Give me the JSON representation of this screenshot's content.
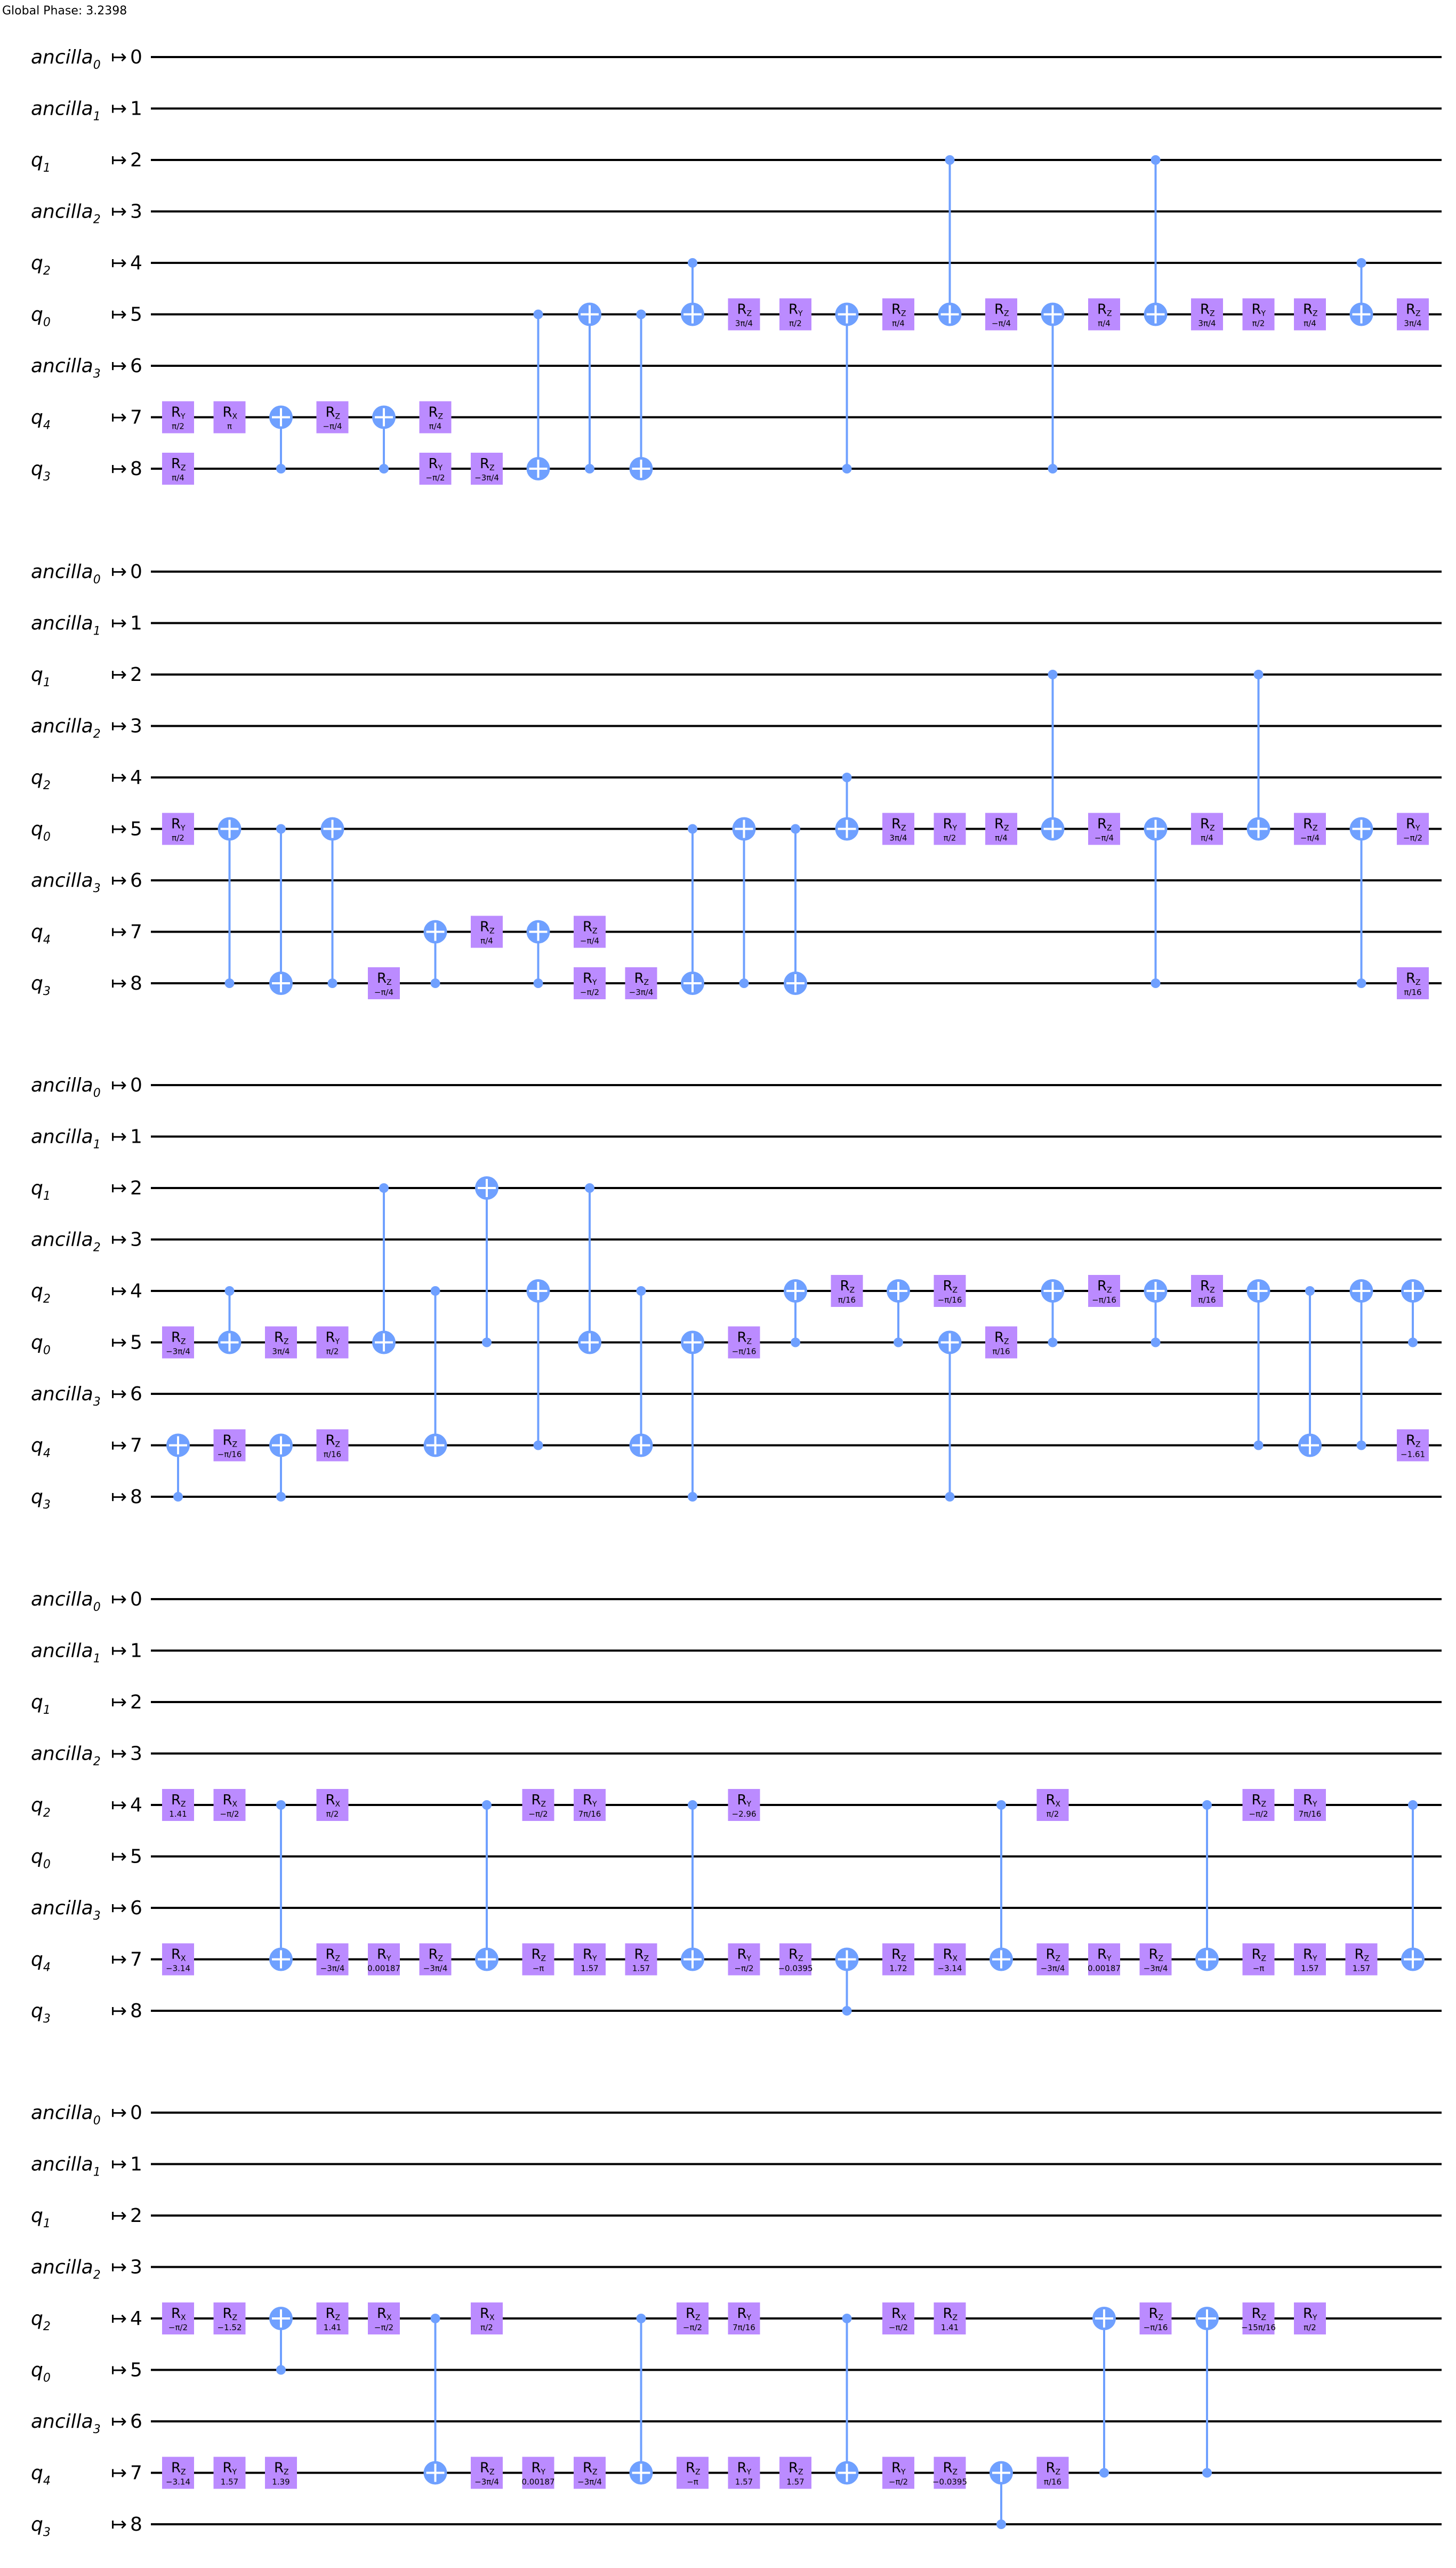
{
  "global_phase": "Global Phase: 3.2398",
  "arrow": "↦",
  "qubits": [
    {
      "name": "ancilla",
      "sub": "0",
      "index": "0"
    },
    {
      "name": "ancilla",
      "sub": "1",
      "index": "1"
    },
    {
      "name": "q",
      "sub": "1",
      "index": "2"
    },
    {
      "name": "ancilla",
      "sub": "2",
      "index": "3"
    },
    {
      "name": "q",
      "sub": "2",
      "index": "4"
    },
    {
      "name": "q",
      "sub": "0",
      "index": "5"
    },
    {
      "name": "ancilla",
      "sub": "3",
      "index": "6"
    },
    {
      "name": "q",
      "sub": "4",
      "index": "7"
    },
    {
      "name": "q",
      "sub": "3",
      "index": "8"
    }
  ],
  "colors": {
    "gate": "#bb8bff",
    "control": "#6fa0ff",
    "wire": "#000000"
  },
  "panels": [
    {
      "ops": [
        {
          "t": "g",
          "w": 7,
          "c": 1,
          "n": "R",
          "s": "Y",
          "p": "π/2"
        },
        {
          "t": "g",
          "w": 8,
          "c": 1,
          "n": "R",
          "s": "Z",
          "p": "π/4"
        },
        {
          "t": "g",
          "w": 7,
          "c": 2,
          "n": "R",
          "s": "X",
          "p": "π"
        },
        {
          "t": "cx",
          "c": 3,
          "ctrl": 8,
          "tgt": 7
        },
        {
          "t": "g",
          "w": 7,
          "c": 4,
          "n": "R",
          "s": "Z",
          "p": "−π/4"
        },
        {
          "t": "cx",
          "c": 5,
          "ctrl": 8,
          "tgt": 7
        },
        {
          "t": "g",
          "w": 7,
          "c": 6,
          "n": "R",
          "s": "Z",
          "p": "π/4"
        },
        {
          "t": "g",
          "w": 8,
          "c": 6,
          "n": "R",
          "s": "Y",
          "p": "−π/2"
        },
        {
          "t": "g",
          "w": 8,
          "c": 7,
          "n": "R",
          "s": "Z",
          "p": "−3π/4"
        },
        {
          "t": "cx",
          "c": 8,
          "ctrl": 5,
          "tgt": 8
        },
        {
          "t": "cx",
          "c": 9,
          "ctrl": 8,
          "tgt": 5
        },
        {
          "t": "cx",
          "c": 10,
          "ctrl": 5,
          "tgt": 8
        },
        {
          "t": "cx",
          "c": 11,
          "ctrl": 4,
          "tgt": 5
        },
        {
          "t": "g",
          "w": 5,
          "c": 12,
          "n": "R",
          "s": "Z",
          "p": "3π/4"
        },
        {
          "t": "g",
          "w": 5,
          "c": 13,
          "n": "R",
          "s": "Y",
          "p": "π/2"
        },
        {
          "t": "cx",
          "c": 14,
          "ctrl": 8,
          "tgt": 5
        },
        {
          "t": "g",
          "w": 5,
          "c": 15,
          "n": "R",
          "s": "Z",
          "p": "π/4"
        },
        {
          "t": "cx",
          "c": 16,
          "ctrl": 2,
          "tgt": 5
        },
        {
          "t": "g",
          "w": 5,
          "c": 17,
          "n": "R",
          "s": "Z",
          "p": "−π/4"
        },
        {
          "t": "cx",
          "c": 18,
          "ctrl": 8,
          "tgt": 5
        },
        {
          "t": "g",
          "w": 5,
          "c": 19,
          "n": "R",
          "s": "Z",
          "p": "π/4"
        },
        {
          "t": "cx",
          "c": 20,
          "ctrl": 2,
          "tgt": 5
        },
        {
          "t": "g",
          "w": 5,
          "c": 21,
          "n": "R",
          "s": "Z",
          "p": "3π/4"
        },
        {
          "t": "g",
          "w": 5,
          "c": 22,
          "n": "R",
          "s": "Y",
          "p": "π/2"
        },
        {
          "t": "g",
          "w": 5,
          "c": 23,
          "n": "R",
          "s": "Z",
          "p": "π/4"
        },
        {
          "t": "cx",
          "c": 24,
          "ctrl": 4,
          "tgt": 5
        },
        {
          "t": "g",
          "w": 5,
          "c": 25,
          "n": "R",
          "s": "Z",
          "p": "3π/4"
        }
      ]
    },
    {
      "ops": [
        {
          "t": "g",
          "w": 5,
          "c": 1,
          "n": "R",
          "s": "Y",
          "p": "π/2"
        },
        {
          "t": "cx",
          "c": 2,
          "ctrl": 8,
          "tgt": 5
        },
        {
          "t": "cx",
          "c": 3,
          "ctrl": 5,
          "tgt": 8
        },
        {
          "t": "cx",
          "c": 4,
          "ctrl": 8,
          "tgt": 5
        },
        {
          "t": "g",
          "w": 8,
          "c": 5,
          "n": "R",
          "s": "Z",
          "p": "−π/4"
        },
        {
          "t": "cx",
          "c": 6,
          "ctrl": 8,
          "tgt": 7
        },
        {
          "t": "g",
          "w": 7,
          "c": 7,
          "n": "R",
          "s": "Z",
          "p": "π/4"
        },
        {
          "t": "cx",
          "c": 8,
          "ctrl": 8,
          "tgt": 7
        },
        {
          "t": "g",
          "w": 7,
          "c": 9,
          "n": "R",
          "s": "Z",
          "p": "−π/4"
        },
        {
          "t": "g",
          "w": 8,
          "c": 9,
          "n": "R",
          "s": "Y",
          "p": "−π/2"
        },
        {
          "t": "g",
          "w": 8,
          "c": 10,
          "n": "R",
          "s": "Z",
          "p": "−3π/4"
        },
        {
          "t": "cx",
          "c": 11,
          "ctrl": 5,
          "tgt": 8
        },
        {
          "t": "cx",
          "c": 12,
          "ctrl": 8,
          "tgt": 5
        },
        {
          "t": "cx",
          "c": 13,
          "ctrl": 5,
          "tgt": 8
        },
        {
          "t": "cx",
          "c": 14,
          "ctrl": 4,
          "tgt": 5
        },
        {
          "t": "g",
          "w": 5,
          "c": 15,
          "n": "R",
          "s": "Z",
          "p": "3π/4"
        },
        {
          "t": "g",
          "w": 5,
          "c": 16,
          "n": "R",
          "s": "Y",
          "p": "π/2"
        },
        {
          "t": "g",
          "w": 5,
          "c": 17,
          "n": "R",
          "s": "Z",
          "p": "π/4"
        },
        {
          "t": "cx",
          "c": 18,
          "ctrl": 2,
          "tgt": 5
        },
        {
          "t": "g",
          "w": 5,
          "c": 19,
          "n": "R",
          "s": "Z",
          "p": "−π/4"
        },
        {
          "t": "cx",
          "c": 20,
          "ctrl": 8,
          "tgt": 5
        },
        {
          "t": "g",
          "w": 5,
          "c": 21,
          "n": "R",
          "s": "Z",
          "p": "π/4"
        },
        {
          "t": "cx",
          "c": 22,
          "ctrl": 2,
          "tgt": 5
        },
        {
          "t": "g",
          "w": 5,
          "c": 23,
          "n": "R",
          "s": "Z",
          "p": "−π/4"
        },
        {
          "t": "cx",
          "c": 24,
          "ctrl": 8,
          "tgt": 5
        },
        {
          "t": "g",
          "w": 5,
          "c": 25,
          "n": "R",
          "s": "Y",
          "p": "−π/2"
        },
        {
          "t": "g",
          "w": 8,
          "c": 25,
          "n": "R",
          "s": "Z",
          "p": "π/16"
        }
      ]
    },
    {
      "ops": [
        {
          "t": "g",
          "w": 5,
          "c": 1,
          "n": "R",
          "s": "Z",
          "p": "−3π/4"
        },
        {
          "t": "cx",
          "c": 1,
          "ctrl": 8,
          "tgt": 7
        },
        {
          "t": "cx",
          "c": 2,
          "ctrl": 4,
          "tgt": 5
        },
        {
          "t": "g",
          "w": 7,
          "c": 2,
          "n": "R",
          "s": "Z",
          "p": "−π/16"
        },
        {
          "t": "g",
          "w": 5,
          "c": 3,
          "n": "R",
          "s": "Z",
          "p": "3π/4"
        },
        {
          "t": "cx",
          "c": 3,
          "ctrl": 8,
          "tgt": 7
        },
        {
          "t": "g",
          "w": 5,
          "c": 4,
          "n": "R",
          "s": "Y",
          "p": "π/2"
        },
        {
          "t": "g",
          "w": 7,
          "c": 4,
          "n": "R",
          "s": "Z",
          "p": "π/16"
        },
        {
          "t": "cx",
          "c": 5,
          "ctrl": 2,
          "tgt": 5
        },
        {
          "t": "cx",
          "c": 6,
          "ctrl": 4,
          "tgt": 7
        },
        {
          "t": "cx",
          "c": 7,
          "ctrl": 5,
          "tgt": 2
        },
        {
          "t": "cx",
          "c": 8,
          "ctrl": 7,
          "tgt": 4
        },
        {
          "t": "cx",
          "c": 9,
          "ctrl": 2,
          "tgt": 5
        },
        {
          "t": "cx",
          "c": 10,
          "ctrl": 4,
          "tgt": 7
        },
        {
          "t": "cx",
          "c": 11,
          "ctrl": 8,
          "tgt": 5
        },
        {
          "t": "g",
          "w": 5,
          "c": 12,
          "n": "R",
          "s": "Z",
          "p": "−π/16"
        },
        {
          "t": "cx",
          "c": 13,
          "ctrl": 5,
          "tgt": 4
        },
        {
          "t": "g",
          "w": 4,
          "c": 14,
          "n": "R",
          "s": "Z",
          "p": "π/16"
        },
        {
          "t": "cx",
          "c": 15,
          "ctrl": 5,
          "tgt": 4
        },
        {
          "t": "g",
          "w": 4,
          "c": 16,
          "n": "R",
          "s": "Z",
          "p": "−π/16"
        },
        {
          "t": "cx",
          "c": 16,
          "ctrl": 8,
          "tgt": 5
        },
        {
          "t": "g",
          "w": 5,
          "c": 17,
          "n": "R",
          "s": "Z",
          "p": "π/16"
        },
        {
          "t": "cx",
          "c": 18,
          "ctrl": 5,
          "tgt": 4
        },
        {
          "t": "g",
          "w": 4,
          "c": 19,
          "n": "R",
          "s": "Z",
          "p": "−π/16"
        },
        {
          "t": "cx",
          "c": 20,
          "ctrl": 5,
          "tgt": 4
        },
        {
          "t": "g",
          "w": 4,
          "c": 21,
          "n": "R",
          "s": "Z",
          "p": "π/16"
        },
        {
          "t": "cx",
          "c": 22,
          "ctrl": 7,
          "tgt": 4
        },
        {
          "t": "cx",
          "c": 23,
          "ctrl": 4,
          "tgt": 7
        },
        {
          "t": "cx",
          "c": 24,
          "ctrl": 7,
          "tgt": 4
        },
        {
          "t": "cx",
          "c": 25,
          "ctrl": 5,
          "tgt": 4
        },
        {
          "t": "g",
          "w": 7,
          "c": 25,
          "n": "R",
          "s": "Z",
          "p": "−1.61"
        }
      ]
    },
    {
      "ops": [
        {
          "t": "g",
          "w": 4,
          "c": 1,
          "n": "R",
          "s": "Z",
          "p": "1.41"
        },
        {
          "t": "g",
          "w": 7,
          "c": 1,
          "n": "R",
          "s": "X",
          "p": "−3.14"
        },
        {
          "t": "g",
          "w": 4,
          "c": 2,
          "n": "R",
          "s": "X",
          "p": "−π/2"
        },
        {
          "t": "cx",
          "c": 3,
          "ctrl": 4,
          "tgt": 7
        },
        {
          "t": "g",
          "w": 4,
          "c": 4,
          "n": "R",
          "s": "X",
          "p": "π/2"
        },
        {
          "t": "g",
          "w": 7,
          "c": 4,
          "n": "R",
          "s": "Z",
          "p": "−3π/4"
        },
        {
          "t": "g",
          "w": 7,
          "c": 5,
          "n": "R",
          "s": "Y",
          "p": "0.00187"
        },
        {
          "t": "g",
          "w": 7,
          "c": 6,
          "n": "R",
          "s": "Z",
          "p": "−3π/4"
        },
        {
          "t": "cx",
          "c": 7,
          "ctrl": 4,
          "tgt": 7
        },
        {
          "t": "g",
          "w": 4,
          "c": 8,
          "n": "R",
          "s": "Z",
          "p": "−π/2"
        },
        {
          "t": "g",
          "w": 7,
          "c": 8,
          "n": "R",
          "s": "Z",
          "p": "−π"
        },
        {
          "t": "g",
          "w": 4,
          "c": 9,
          "n": "R",
          "s": "Y",
          "p": "7π/16"
        },
        {
          "t": "g",
          "w": 7,
          "c": 9,
          "n": "R",
          "s": "Y",
          "p": "1.57"
        },
        {
          "t": "g",
          "w": 7,
          "c": 10,
          "n": "R",
          "s": "Z",
          "p": "1.57"
        },
        {
          "t": "cx",
          "c": 11,
          "ctrl": 4,
          "tgt": 7
        },
        {
          "t": "g",
          "w": 4,
          "c": 12,
          "n": "R",
          "s": "Y",
          "p": "−2.96"
        },
        {
          "t": "g",
          "w": 7,
          "c": 12,
          "n": "R",
          "s": "Y",
          "p": "−π/2"
        },
        {
          "t": "g",
          "w": 7,
          "c": 13,
          "n": "R",
          "s": "Z",
          "p": "−0.0395"
        },
        {
          "t": "cx",
          "c": 14,
          "ctrl": 8,
          "tgt": 7
        },
        {
          "t": "g",
          "w": 7,
          "c": 15,
          "n": "R",
          "s": "Z",
          "p": "1.72"
        },
        {
          "t": "g",
          "w": 7,
          "c": 16,
          "n": "R",
          "s": "X",
          "p": "−3.14"
        },
        {
          "t": "cx",
          "c": 17,
          "ctrl": 4,
          "tgt": 7
        },
        {
          "t": "g",
          "w": 4,
          "c": 18,
          "n": "R",
          "s": "X",
          "p": "π/2"
        },
        {
          "t": "g",
          "w": 7,
          "c": 18,
          "n": "R",
          "s": "Z",
          "p": "−3π/4"
        },
        {
          "t": "g",
          "w": 7,
          "c": 19,
          "n": "R",
          "s": "Y",
          "p": "0.00187"
        },
        {
          "t": "g",
          "w": 7,
          "c": 20,
          "n": "R",
          "s": "Z",
          "p": "−3π/4"
        },
        {
          "t": "cx",
          "c": 21,
          "ctrl": 4,
          "tgt": 7
        },
        {
          "t": "g",
          "w": 4,
          "c": 22,
          "n": "R",
          "s": "Z",
          "p": "−π/2"
        },
        {
          "t": "g",
          "w": 7,
          "c": 22,
          "n": "R",
          "s": "Z",
          "p": "−π"
        },
        {
          "t": "g",
          "w": 4,
          "c": 23,
          "n": "R",
          "s": "Y",
          "p": "7π/16"
        },
        {
          "t": "g",
          "w": 7,
          "c": 23,
          "n": "R",
          "s": "Y",
          "p": "1.57"
        },
        {
          "t": "g",
          "w": 7,
          "c": 24,
          "n": "R",
          "s": "Z",
          "p": "1.57"
        },
        {
          "t": "cx",
          "c": 25,
          "ctrl": 4,
          "tgt": 7
        }
      ]
    },
    {
      "ops": [
        {
          "t": "g",
          "w": 4,
          "c": 1,
          "n": "R",
          "s": "X",
          "p": "−π/2"
        },
        {
          "t": "g",
          "w": 7,
          "c": 1,
          "n": "R",
          "s": "Z",
          "p": "−3.14"
        },
        {
          "t": "g",
          "w": 4,
          "c": 2,
          "n": "R",
          "s": "Z",
          "p": "−1.52"
        },
        {
          "t": "g",
          "w": 7,
          "c": 2,
          "n": "R",
          "s": "Y",
          "p": "1.57"
        },
        {
          "t": "cx",
          "c": 3,
          "ctrl": 5,
          "tgt": 4
        },
        {
          "t": "g",
          "w": 7,
          "c": 3,
          "n": "R",
          "s": "Z",
          "p": "1.39"
        },
        {
          "t": "g",
          "w": 4,
          "c": 4,
          "n": "R",
          "s": "Z",
          "p": "1.41"
        },
        {
          "t": "g",
          "w": 4,
          "c": 5,
          "n": "R",
          "s": "X",
          "p": "−π/2"
        },
        {
          "t": "cx",
          "c": 6,
          "ctrl": 4,
          "tgt": 7
        },
        {
          "t": "g",
          "w": 4,
          "c": 7,
          "n": "R",
          "s": "X",
          "p": "π/2"
        },
        {
          "t": "g",
          "w": 7,
          "c": 7,
          "n": "R",
          "s": "Z",
          "p": "−3π/4"
        },
        {
          "t": "g",
          "w": 7,
          "c": 8,
          "n": "R",
          "s": "Y",
          "p": "0.00187"
        },
        {
          "t": "g",
          "w": 7,
          "c": 9,
          "n": "R",
          "s": "Z",
          "p": "−3π/4"
        },
        {
          "t": "cx",
          "c": 10,
          "ctrl": 4,
          "tgt": 7
        },
        {
          "t": "g",
          "w": 4,
          "c": 11,
          "n": "R",
          "s": "Z",
          "p": "−π/2"
        },
        {
          "t": "g",
          "w": 7,
          "c": 11,
          "n": "R",
          "s": "Z",
          "p": "−π"
        },
        {
          "t": "g",
          "w": 4,
          "c": 12,
          "n": "R",
          "s": "Y",
          "p": "7π/16"
        },
        {
          "t": "g",
          "w": 7,
          "c": 12,
          "n": "R",
          "s": "Y",
          "p": "1.57"
        },
        {
          "t": "g",
          "w": 7,
          "c": 13,
          "n": "R",
          "s": "Z",
          "p": "1.57"
        },
        {
          "t": "cx",
          "c": 14,
          "ctrl": 4,
          "tgt": 7
        },
        {
          "t": "g",
          "w": 4,
          "c": 15,
          "n": "R",
          "s": "X",
          "p": "−π/2"
        },
        {
          "t": "g",
          "w": 7,
          "c": 15,
          "n": "R",
          "s": "Y",
          "p": "−π/2"
        },
        {
          "t": "g",
          "w": 4,
          "c": 16,
          "n": "R",
          "s": "Z",
          "p": "1.41"
        },
        {
          "t": "g",
          "w": 7,
          "c": 16,
          "n": "R",
          "s": "Z",
          "p": "−0.0395"
        },
        {
          "t": "cx",
          "c": 17,
          "ctrl": 8,
          "tgt": 7
        },
        {
          "t": "g",
          "w": 7,
          "c": 18,
          "n": "R",
          "s": "Z",
          "p": "π/16"
        },
        {
          "t": "cx",
          "c": 19,
          "ctrl": 7,
          "tgt": 4
        },
        {
          "t": "g",
          "w": 4,
          "c": 20,
          "n": "R",
          "s": "Z",
          "p": "−π/16"
        },
        {
          "t": "cx",
          "c": 21,
          "ctrl": 7,
          "tgt": 4
        },
        {
          "t": "g",
          "w": 4,
          "c": 22,
          "n": "R",
          "s": "Z",
          "p": "−15π/16"
        },
        {
          "t": "g",
          "w": 4,
          "c": 23,
          "n": "R",
          "s": "Y",
          "p": "π/2"
        }
      ]
    }
  ]
}
